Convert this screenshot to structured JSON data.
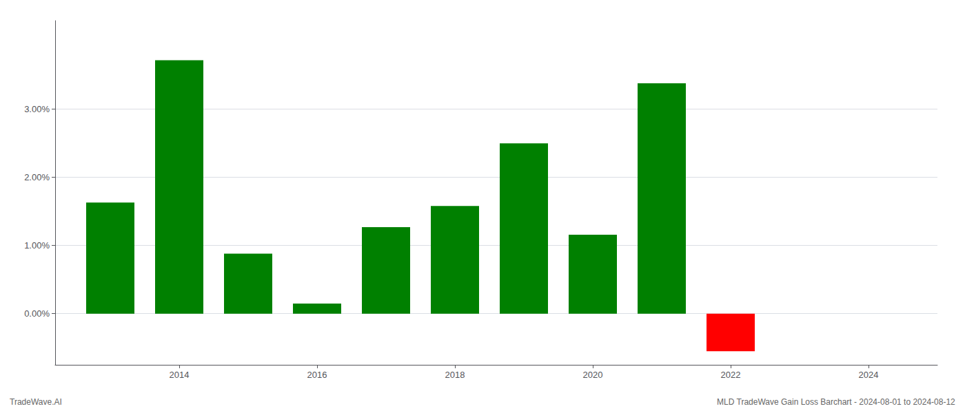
{
  "chart_data": {
    "type": "bar",
    "x": [
      2013,
      2014,
      2015,
      2016,
      2017,
      2018,
      2019,
      2020,
      2021,
      2022,
      2023
    ],
    "values": [
      1.63,
      3.72,
      0.88,
      0.15,
      1.27,
      1.58,
      2.5,
      1.16,
      3.38,
      -0.55,
      0.0
    ],
    "colors": [
      "#008000",
      "#008000",
      "#008000",
      "#008000",
      "#008000",
      "#008000",
      "#008000",
      "#008000",
      "#008000",
      "#ff0000",
      "#008000"
    ],
    "xlim": [
      2012.2,
      2025.0
    ],
    "xticks": [
      2014,
      2016,
      2018,
      2020,
      2022,
      2024
    ],
    "ylim": [
      -0.75,
      4.3
    ],
    "yticks": [
      {
        "value": 0.0,
        "label": "0.00%"
      },
      {
        "value": 1.0,
        "label": "1.00%"
      },
      {
        "value": 2.0,
        "label": "2.00%"
      },
      {
        "value": 3.0,
        "label": "3.00%"
      }
    ],
    "grid": true,
    "annotations": [
      "TradeWave.AI",
      "MLD TradeWave Gain Loss Barchart - 2024-08-01 to 2024-08-12"
    ]
  }
}
